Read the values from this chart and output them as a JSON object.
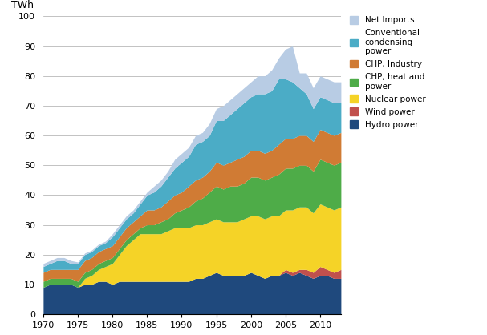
{
  "years": [
    1970,
    1971,
    1972,
    1973,
    1974,
    1975,
    1976,
    1977,
    1978,
    1979,
    1980,
    1981,
    1982,
    1983,
    1984,
    1985,
    1986,
    1987,
    1988,
    1989,
    1990,
    1991,
    1992,
    1993,
    1994,
    1995,
    1996,
    1997,
    1998,
    1999,
    2000,
    2001,
    2002,
    2003,
    2004,
    2005,
    2006,
    2007,
    2008,
    2009,
    2010,
    2011,
    2012,
    2013
  ],
  "hydro": [
    9.0,
    10.0,
    10.0,
    10.0,
    10.0,
    9.0,
    10.0,
    10.0,
    11.0,
    11.0,
    10.0,
    11.0,
    11.0,
    11.0,
    11.0,
    11.0,
    11.0,
    11.0,
    11.0,
    11.0,
    11.0,
    11.0,
    12.0,
    12.0,
    13.0,
    14.0,
    13.0,
    13.0,
    13.0,
    13.0,
    14.0,
    13.0,
    12.0,
    13.0,
    13.0,
    14.0,
    13.0,
    14.0,
    13.0,
    12.0,
    13.0,
    13.0,
    12.0,
    12.0
  ],
  "wind": [
    0.0,
    0.0,
    0.0,
    0.0,
    0.0,
    0.0,
    0.0,
    0.0,
    0.0,
    0.0,
    0.0,
    0.0,
    0.0,
    0.0,
    0.0,
    0.0,
    0.0,
    0.0,
    0.0,
    0.0,
    0.0,
    0.0,
    0.0,
    0.0,
    0.0,
    0.0,
    0.0,
    0.0,
    0.0,
    0.0,
    0.0,
    0.0,
    0.0,
    0.0,
    0.0,
    1.0,
    1.0,
    1.0,
    2.0,
    2.0,
    3.0,
    2.0,
    2.0,
    3.0
  ],
  "nuclear": [
    0.0,
    0.0,
    0.0,
    0.0,
    0.0,
    0.0,
    2.0,
    3.0,
    4.0,
    5.0,
    7.0,
    9.0,
    12.0,
    14.0,
    16.0,
    16.0,
    16.0,
    16.0,
    17.0,
    18.0,
    18.0,
    18.0,
    18.0,
    18.0,
    18.0,
    18.0,
    18.0,
    18.0,
    18.0,
    19.0,
    19.0,
    20.0,
    20.0,
    20.0,
    20.0,
    20.0,
    21.0,
    21.0,
    21.0,
    20.0,
    21.0,
    21.0,
    21.0,
    21.0
  ],
  "chp_heat": [
    2.0,
    2.0,
    2.0,
    2.0,
    2.0,
    2.0,
    2.0,
    2.0,
    2.0,
    2.0,
    2.0,
    2.0,
    2.0,
    2.0,
    2.0,
    3.0,
    3.0,
    4.0,
    4.0,
    5.0,
    6.0,
    7.0,
    8.0,
    9.0,
    10.0,
    11.0,
    11.0,
    12.0,
    12.0,
    12.0,
    13.0,
    13.0,
    13.0,
    13.0,
    14.0,
    14.0,
    14.0,
    14.0,
    14.0,
    14.0,
    15.0,
    15.0,
    15.0,
    15.0
  ],
  "chp_industry": [
    3.0,
    3.0,
    3.0,
    3.0,
    3.0,
    4.0,
    4.0,
    4.0,
    4.0,
    4.0,
    4.0,
    4.0,
    4.0,
    4.0,
    4.0,
    5.0,
    5.0,
    5.0,
    6.0,
    6.0,
    6.0,
    7.0,
    7.0,
    7.0,
    7.0,
    8.0,
    8.0,
    8.0,
    9.0,
    9.0,
    9.0,
    9.0,
    9.0,
    9.0,
    10.0,
    10.0,
    10.0,
    10.0,
    10.0,
    10.0,
    10.0,
    10.0,
    10.0,
    10.0
  ],
  "conventional": [
    2.0,
    2.0,
    3.0,
    3.0,
    2.0,
    2.0,
    2.0,
    2.0,
    2.0,
    2.0,
    3.0,
    3.0,
    3.0,
    3.0,
    4.0,
    5.0,
    6.0,
    7.0,
    8.0,
    9.0,
    10.0,
    10.0,
    12.0,
    12.0,
    12.0,
    14.0,
    15.0,
    16.0,
    17.0,
    18.0,
    18.0,
    19.0,
    20.0,
    20.0,
    22.0,
    20.0,
    19.0,
    16.0,
    14.0,
    11.0,
    11.0,
    11.0,
    11.0,
    10.0
  ],
  "net_imports": [
    1.0,
    1.0,
    1.0,
    1.0,
    1.0,
    0.5,
    0.5,
    0.5,
    0.5,
    0.5,
    1.0,
    1.0,
    1.0,
    1.0,
    1.0,
    1.0,
    2.0,
    2.0,
    2.0,
    3.0,
    3.0,
    3.0,
    3.0,
    3.0,
    4.0,
    4.0,
    5.0,
    5.0,
    5.0,
    5.0,
    5.0,
    6.0,
    6.0,
    7.0,
    7.0,
    10.0,
    12.0,
    5.0,
    7.0,
    7.0,
    7.0,
    7.0,
    7.0,
    7.0
  ],
  "colors": {
    "hydro": "#1F497D",
    "wind": "#C0504D",
    "nuclear": "#F5D327",
    "chp_heat": "#4EAC48",
    "chp_industry": "#D07B34",
    "conventional": "#4BACC6",
    "net_imports": "#B8CCE4"
  },
  "labels": {
    "hydro": "Hydro power",
    "wind": "Wind power",
    "nuclear": "Nuclear power",
    "chp_heat": "CHP, heat and\npower",
    "chp_industry": "CHP, Industry",
    "conventional": "Conventional\ncondensing\npower",
    "net_imports": "Net Imports"
  },
  "ylabel": "TWh",
  "ylim": [
    0,
    100
  ],
  "xlim": [
    1970,
    2013
  ],
  "yticks": [
    0,
    10,
    20,
    30,
    40,
    50,
    60,
    70,
    80,
    90,
    100
  ],
  "xticks": [
    1970,
    1975,
    1980,
    1985,
    1990,
    1995,
    2000,
    2005,
    2010
  ],
  "background_color": "#FFFFFF"
}
